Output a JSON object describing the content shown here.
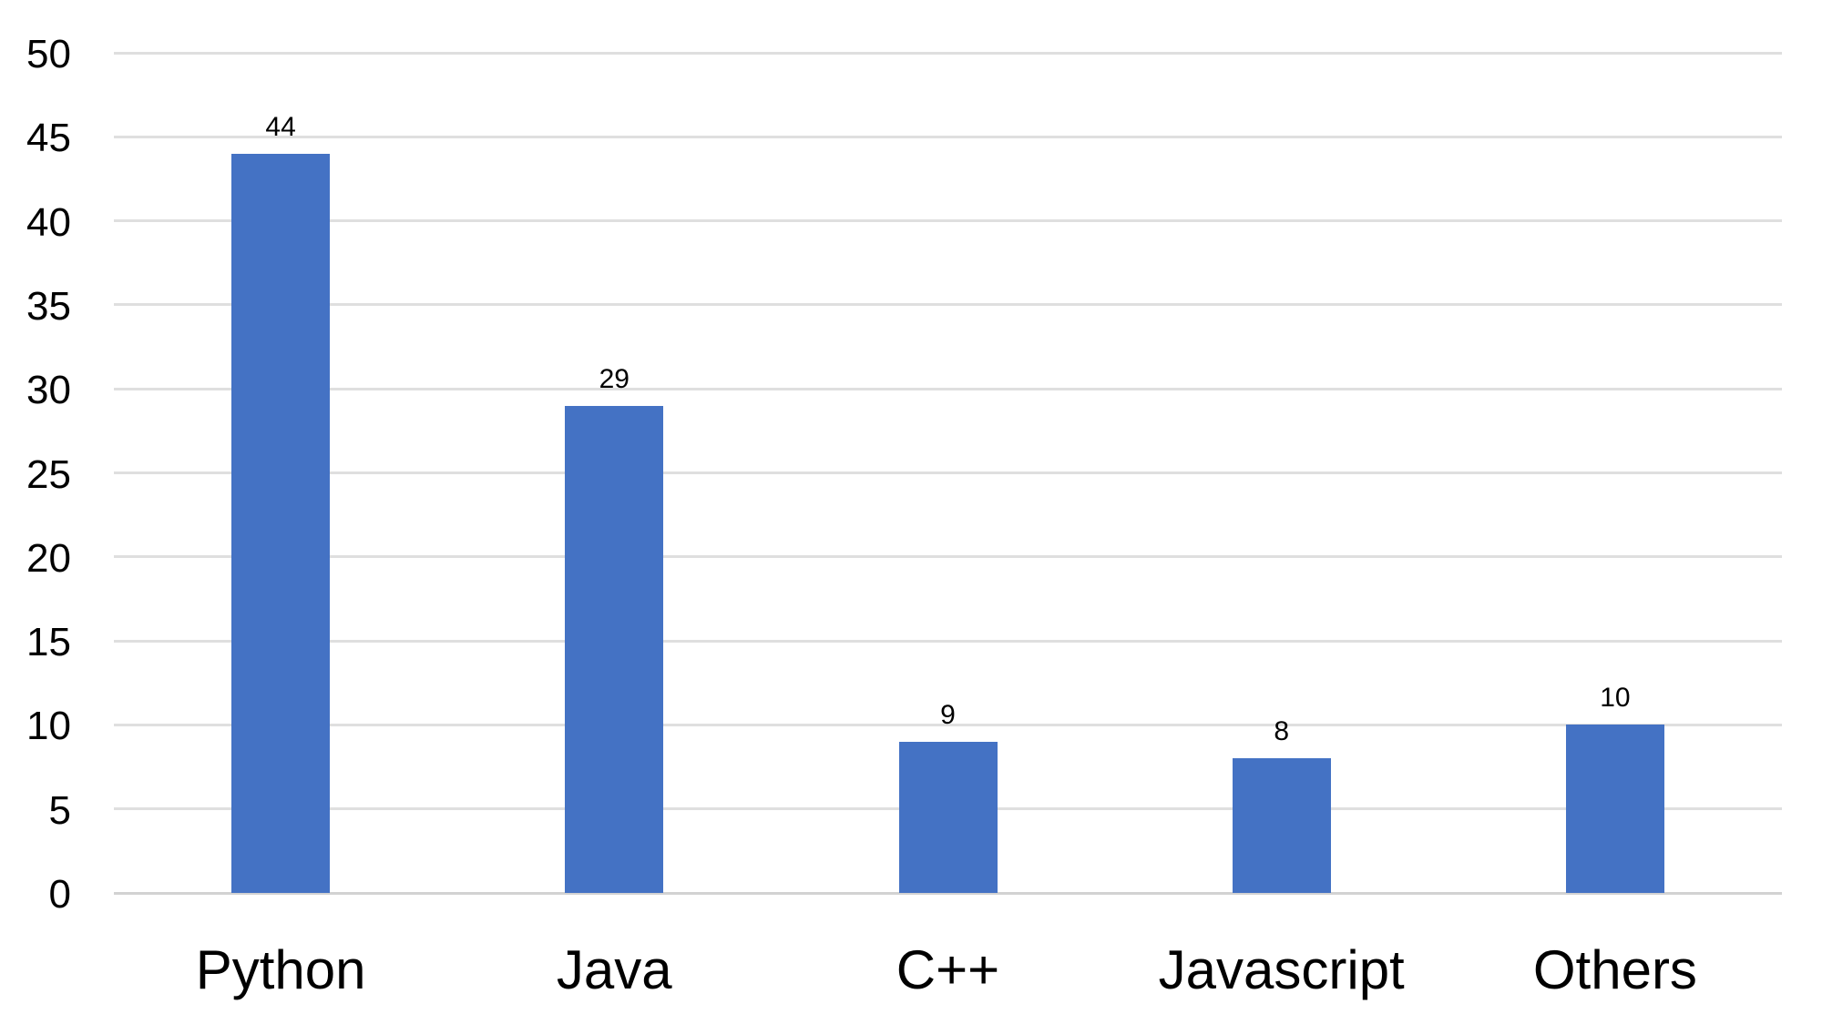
{
  "chart_data": {
    "type": "bar",
    "title": "",
    "categories": [
      "Python",
      "Java",
      "C++",
      "Javascript",
      "Others"
    ],
    "values": [
      44,
      29,
      9,
      8,
      10
    ],
    "data_labels": [
      "44",
      "29",
      "9",
      "8",
      "10"
    ],
    "series_count": 1,
    "xlabel": "",
    "ylabel": "",
    "ylim": [
      0,
      50
    ],
    "ytick_step": 5,
    "yticks": [
      0,
      5,
      10,
      15,
      20,
      25,
      30,
      35,
      40,
      45,
      50
    ],
    "grid": "horizontal",
    "legend_position": "none",
    "colors": {
      "bar": "#4472C4",
      "gridline": "#DFDFDF",
      "baseline": "#D2D2D2",
      "text": "#000000",
      "background": "#FFFFFF"
    }
  }
}
